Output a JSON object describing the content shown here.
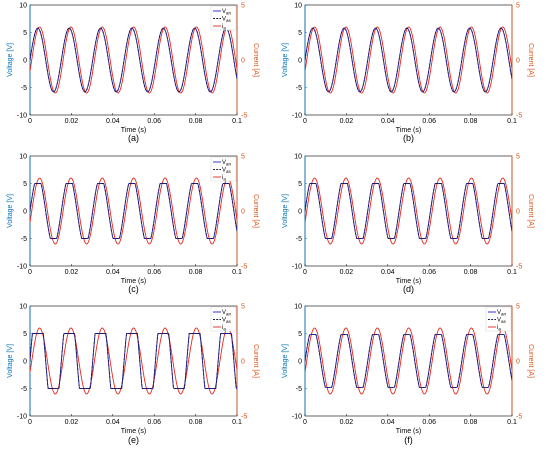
{
  "colors": {
    "van": "#1f1fd6",
    "vas": "#1f1f3f",
    "ia": "#e8281e",
    "left_axis": "#0072bd",
    "right_axis": "#d95319"
  },
  "chart_data": [
    {
      "type": "line",
      "caption": "(a)",
      "xlabel": "Time (s)",
      "ylabel": "Voltage [V]",
      "ylabel_right": "Current [A]",
      "xlim": [
        0,
        0.1
      ],
      "ylim": [
        -10,
        10
      ],
      "ylim_right": [
        -5,
        5
      ],
      "xticks": [
        "0",
        "0.02",
        "0.04",
        "0.06",
        "0.08",
        "0.1"
      ],
      "yticks": [
        "-10",
        "-5",
        "0",
        "5",
        "10"
      ],
      "yticks_right": [
        "-5",
        "0",
        "5"
      ],
      "frequency_hz": 66,
      "series": [
        {
          "name": "V",
          "sub": "an",
          "axis": "left",
          "amplitude": 5.8,
          "phase_deg": 0,
          "shape": "sine",
          "style": "solid"
        },
        {
          "name": "V",
          "sub": "as",
          "axis": "left",
          "amplitude": 5.8,
          "phase_deg": 0,
          "shape": "sine",
          "style": "dashed"
        },
        {
          "name": "i",
          "sub": "a",
          "axis": "right",
          "amplitude": 3.0,
          "phase_deg": -20,
          "shape": "sine",
          "style": "solid"
        }
      ]
    },
    {
      "type": "line",
      "caption": "(b)",
      "xlabel": "Time (s)",
      "ylabel": "Voltage [V]",
      "ylabel_right": "Current [A]",
      "xlim": [
        0,
        0.1
      ],
      "ylim": [
        -10,
        10
      ],
      "ylim_right": [
        -5,
        5
      ],
      "xticks": [
        "0",
        "0.02",
        "0.04",
        "0.06",
        "0.08",
        "0.1"
      ],
      "yticks": [
        "-10",
        "-5",
        "0",
        "5",
        "10"
      ],
      "yticks_right": [
        "-5",
        "0",
        "5"
      ],
      "frequency_hz": 66,
      "series": [
        {
          "name": "",
          "sub": "",
          "axis": "left",
          "amplitude": 5.8,
          "phase_deg": 0,
          "shape": "sine",
          "style": "solid"
        },
        {
          "name": "",
          "sub": "",
          "axis": "left",
          "amplitude": 5.8,
          "phase_deg": 0,
          "shape": "sine",
          "style": "dashed"
        },
        {
          "name": "",
          "sub": "",
          "axis": "right",
          "amplitude": 3.0,
          "phase_deg": -20,
          "shape": "sine",
          "style": "solid"
        }
      ]
    },
    {
      "type": "line",
      "caption": "(c)",
      "xlabel": "Time (s)",
      "ylabel": "Voltage [V]",
      "ylabel_right": "Current [A]",
      "xlim": [
        0,
        0.1
      ],
      "ylim": [
        -10,
        10
      ],
      "ylim_right": [
        -5,
        5
      ],
      "xticks": [
        "0",
        "0.02",
        "0.04",
        "0.06",
        "0.08",
        "0.1"
      ],
      "yticks": [
        "-10",
        "-5",
        "0",
        "5",
        "10"
      ],
      "yticks_right": [
        "-5",
        "0",
        "5"
      ],
      "frequency_hz": 66,
      "series": [
        {
          "name": "V",
          "sub": "an",
          "axis": "left",
          "amplitude": 5.0,
          "phase_deg": 0,
          "shape": "trapezoid",
          "style": "solid"
        },
        {
          "name": "V",
          "sub": "as",
          "axis": "left",
          "amplitude": 5.0,
          "phase_deg": 0,
          "shape": "trapezoid",
          "style": "dashed"
        },
        {
          "name": "i",
          "sub": "a",
          "axis": "right",
          "amplitude": 3.0,
          "phase_deg": -20,
          "shape": "sine",
          "style": "solid"
        }
      ]
    },
    {
      "type": "line",
      "caption": "(d)",
      "xlabel": "Time (s)",
      "ylabel": "Voltage [V]",
      "ylabel_right": "Current [A]",
      "xlim": [
        0,
        0.1
      ],
      "ylim": [
        -10,
        10
      ],
      "ylim_right": [
        -5,
        5
      ],
      "xticks": [
        "0",
        "0.02",
        "0.04",
        "0.06",
        "0.08",
        "0.1"
      ],
      "yticks": [
        "-10",
        "-5",
        "0",
        "5",
        "10"
      ],
      "yticks_right": [
        "-5",
        "0",
        "5"
      ],
      "frequency_hz": 66,
      "series": [
        {
          "name": "",
          "sub": "",
          "axis": "left",
          "amplitude": 5.0,
          "phase_deg": 0,
          "shape": "trapezoid",
          "style": "solid"
        },
        {
          "name": "",
          "sub": "",
          "axis": "left",
          "amplitude": 5.0,
          "phase_deg": 0,
          "shape": "trapezoid",
          "style": "dashed"
        },
        {
          "name": "",
          "sub": "",
          "axis": "right",
          "amplitude": 3.0,
          "phase_deg": -20,
          "shape": "sine",
          "style": "solid"
        }
      ]
    },
    {
      "type": "line",
      "caption": "(e)",
      "xlabel": "Time (s)",
      "ylabel": "Voltage [V]",
      "ylabel_right": "Current [A]",
      "xlim": [
        0,
        0.1
      ],
      "ylim": [
        -10,
        10
      ],
      "ylim_right": [
        -5,
        5
      ],
      "xticks": [
        "0",
        "0.02",
        "0.04",
        "0.06",
        "0.08",
        "0.1"
      ],
      "yticks": [
        "-10",
        "-5",
        "0",
        "5",
        "10"
      ],
      "yticks_right": [
        "-5",
        "0",
        "5"
      ],
      "frequency_hz": 66,
      "series": [
        {
          "name": "V",
          "sub": "an",
          "axis": "left",
          "amplitude": 5.0,
          "phase_deg": 0,
          "shape": "square",
          "style": "solid"
        },
        {
          "name": "V",
          "sub": "as",
          "axis": "left",
          "amplitude": 5.0,
          "phase_deg": 0,
          "shape": "square",
          "style": "dashed"
        },
        {
          "name": "i",
          "sub": "a",
          "axis": "right",
          "amplitude": 3.0,
          "phase_deg": -20,
          "shape": "sine",
          "style": "solid"
        }
      ]
    },
    {
      "type": "line",
      "caption": "(f)",
      "xlabel": "Time (s)",
      "ylabel": "Voltage [V]",
      "ylabel_right": "Current [A]",
      "xlim": [
        0,
        0.1
      ],
      "ylim": [
        -10,
        10
      ],
      "ylim_right": [
        -5,
        5
      ],
      "xticks": [
        "0",
        "0.02",
        "0.04",
        "0.06",
        "0.08",
        "0.1"
      ],
      "yticks": [
        "-10",
        "-5",
        "0",
        "5",
        "10"
      ],
      "yticks_right": [
        "-5",
        "0",
        "5"
      ],
      "frequency_hz": 66,
      "series": [
        {
          "name": "V",
          "sub": "an",
          "axis": "left",
          "amplitude": 4.8,
          "phase_deg": 0,
          "shape": "trapezoid",
          "style": "solid"
        },
        {
          "name": "V",
          "sub": "as",
          "axis": "left",
          "amplitude": 4.8,
          "phase_deg": 0,
          "shape": "trapezoid",
          "style": "dashed"
        },
        {
          "name": "i",
          "sub": "a",
          "axis": "right",
          "amplitude": 3.0,
          "phase_deg": -20,
          "shape": "sine",
          "style": "solid"
        }
      ]
    }
  ]
}
